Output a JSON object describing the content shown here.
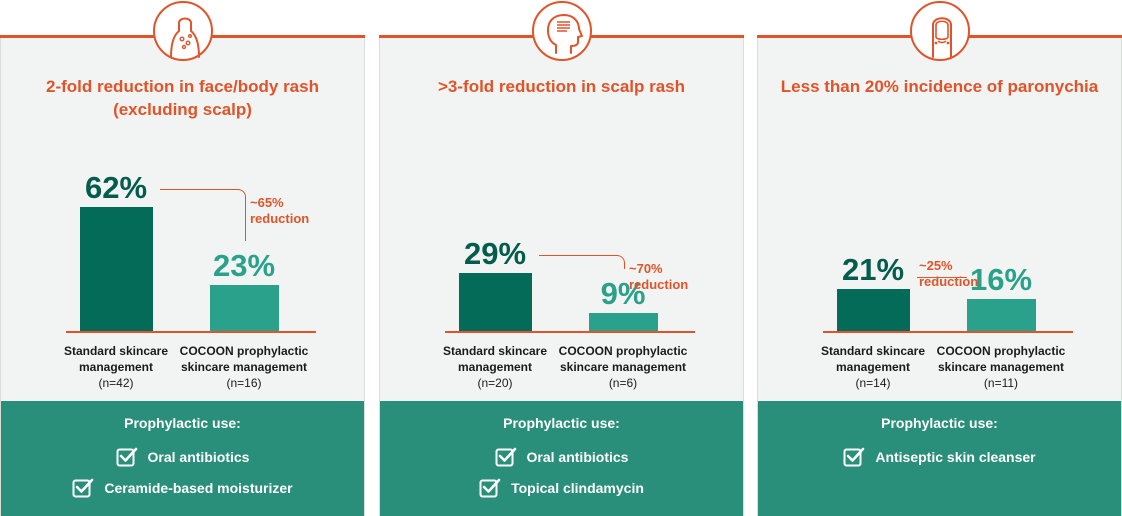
{
  "colors": {
    "accent": "#e1542a",
    "standard_bar": "#036b58",
    "cocoon_bar": "#2aa18a",
    "footer_bg": "#2a8f7a",
    "panel_bg": "#f1f4f2"
  },
  "chart_data": [
    {
      "type": "bar",
      "icon": "torso-rash-icon",
      "title_lines": [
        "2-fold reduction in face/body rash",
        "(excluding scalp)"
      ],
      "categories": [
        "Standard skincare management",
        "COCOON prophylactic skincare management"
      ],
      "category_lines": [
        [
          "Standard skincare",
          "management"
        ],
        [
          "COCOON prophylactic",
          "skincare management"
        ]
      ],
      "n_labels": [
        "(n=42)",
        "(n=16)"
      ],
      "values": [
        62,
        23
      ],
      "value_labels": [
        "62%",
        "23%"
      ],
      "reduction_lines": [
        "~65%",
        "reduction"
      ],
      "ylim": [
        0,
        100
      ],
      "prophylactic_title": "Prophylactic use:",
      "prophylactic_items": [
        "Oral antibiotics",
        "Ceramide-based moisturizer"
      ]
    },
    {
      "type": "bar",
      "icon": "head-scalp-icon",
      "title_lines": [
        ">3-fold reduction in scalp rash"
      ],
      "categories": [
        "Standard skincare management",
        "COCOON prophylactic skincare management"
      ],
      "category_lines": [
        [
          "Standard skincare",
          "management"
        ],
        [
          "COCOON prophylactic",
          "skincare management"
        ]
      ],
      "n_labels": [
        "(n=20)",
        "(n=6)"
      ],
      "values": [
        29,
        9
      ],
      "value_labels": [
        "29%",
        "9%"
      ],
      "reduction_lines": [
        "~70%",
        "reduction"
      ],
      "ylim": [
        0,
        100
      ],
      "prophylactic_title": "Prophylactic use:",
      "prophylactic_items": [
        "Oral antibiotics",
        "Topical clindamycin"
      ]
    },
    {
      "type": "bar",
      "icon": "fingernail-icon",
      "title_lines": [
        "Less than 20% incidence of paronychia"
      ],
      "categories": [
        "Standard skincare management",
        "COCOON prophylactic skincare management"
      ],
      "category_lines": [
        [
          "Standard skincare",
          "management"
        ],
        [
          "COCOON prophylactic",
          "skincare management"
        ]
      ],
      "n_labels": [
        "(n=14)",
        "(n=11)"
      ],
      "values": [
        21,
        16
      ],
      "value_labels": [
        "21%",
        "16%"
      ],
      "reduction_lines": [
        "~25% reduction"
      ],
      "ylim": [
        0,
        100
      ],
      "prophylactic_title": "Prophylactic use:",
      "prophylactic_items": [
        "Antiseptic skin cleanser"
      ]
    }
  ]
}
